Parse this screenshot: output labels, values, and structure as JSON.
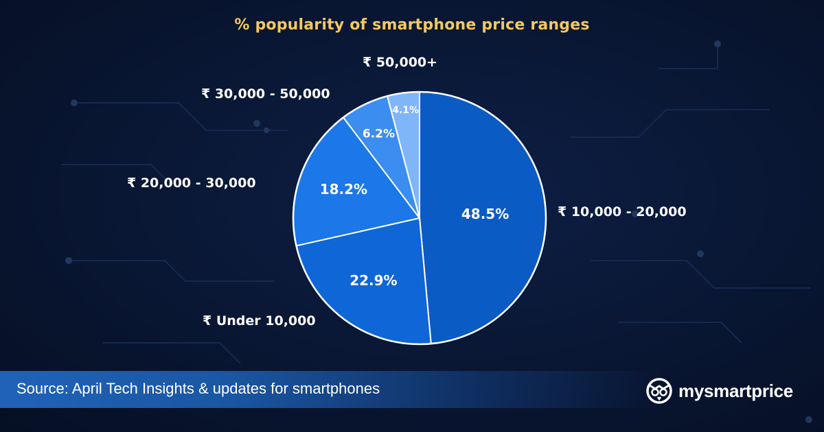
{
  "chart_data": {
    "type": "pie",
    "title": "% popularity of smartphone price ranges",
    "slices": [
      {
        "label": "₹  10,000 - 20,000",
        "value": 48.5,
        "value_label": "48.5%",
        "color": "#0b5bc4"
      },
      {
        "label": "₹  Under 10,000",
        "value": 22.9,
        "value_label": "22.9%",
        "color": "#0f66d6"
      },
      {
        "label": "₹  20,000 - 30,000",
        "value": 18.2,
        "value_label": "18.2%",
        "color": "#1c78e8"
      },
      {
        "label": "₹  30,000 - 50,000",
        "value": 6.2,
        "value_label": "6.2%",
        "color": "#3b8ef0"
      },
      {
        "label": "₹  50,000+",
        "value": 4.1,
        "value_label": "4.1%",
        "color": "#7fb6fa"
      }
    ],
    "start": "top",
    "direction": "clockwise",
    "edge_color": "#ffffff"
  },
  "footer": {
    "source": "Source: April Tech Insights & updates for smartphones",
    "brand": "mysmartprice"
  },
  "colors": {
    "title": "#f4c95d",
    "background": "#0a1836",
    "source_bar": "#1f63b8"
  },
  "icons": {
    "brand_logo": "owl-icon"
  }
}
